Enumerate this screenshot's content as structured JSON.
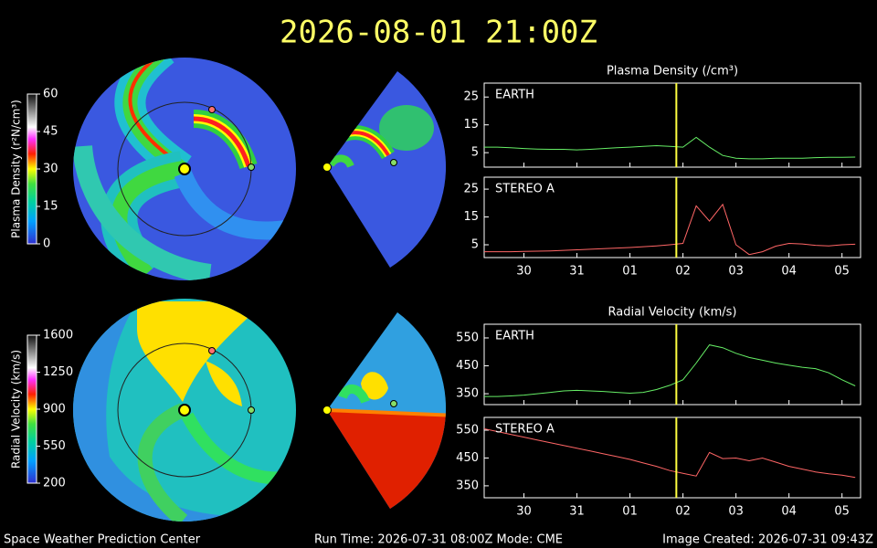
{
  "title": "2026-08-01 21:00Z",
  "colorbars": [
    {
      "label": "Plasma Density (r²N/cm³)",
      "lim": [
        0,
        60
      ],
      "ticks": [
        0,
        15,
        30,
        45,
        60
      ]
    },
    {
      "label": "Radial Velocity (km/s)",
      "lim": [
        200,
        1600
      ],
      "ticks": [
        200,
        550,
        900,
        1250,
        1600
      ]
    }
  ],
  "chart_data": [
    {
      "type": "line",
      "title": "Plasma Density (/cm³)",
      "x": [
        -0.75,
        -0.5,
        -0.25,
        0,
        0.25,
        0.5,
        0.75,
        1,
        1.25,
        1.5,
        1.75,
        2,
        2.25,
        2.5,
        2.75,
        3,
        3.25,
        3.5,
        3.75,
        4,
        4.25,
        4.5,
        4.75,
        5,
        5.25,
        5.5,
        5.75,
        6,
        6.25
      ],
      "xlim": [
        -0.75,
        6.35
      ],
      "ylim": [
        -0.2,
        30
      ],
      "yticks": [
        5,
        15,
        25
      ],
      "now": 2.875,
      "series": [
        {
          "name": "EARTH",
          "color": "#66ee66",
          "values": [
            7,
            7,
            6.8,
            6.5,
            6.3,
            6.2,
            6.2,
            6,
            6.2,
            6.5,
            6.8,
            7,
            7.3,
            7.5,
            7.3,
            7,
            10.5,
            7,
            4,
            3,
            2.8,
            2.8,
            3,
            3,
            3,
            3.2,
            3.3,
            3.3,
            3.4
          ]
        }
      ]
    },
    {
      "type": "line",
      "x": [
        -0.75,
        -0.5,
        -0.25,
        0,
        0.25,
        0.5,
        0.75,
        1,
        1.25,
        1.5,
        1.75,
        2,
        2.25,
        2.5,
        2.75,
        3,
        3.25,
        3.5,
        3.75,
        4,
        4.25,
        4.5,
        4.75,
        5,
        5.25,
        5.5,
        5.75,
        6,
        6.25
      ],
      "xlim": [
        -0.75,
        6.35
      ],
      "ylim": [
        0.4,
        29.3
      ],
      "yticks": [
        5,
        15,
        25
      ],
      "now": 2.875,
      "xticks": [
        {
          "value": 0,
          "label": "30"
        },
        {
          "value": 1,
          "label": "31"
        },
        {
          "value": 2,
          "label": "01"
        },
        {
          "value": 3,
          "label": "02"
        },
        {
          "value": 4,
          "label": "03"
        },
        {
          "value": 5,
          "label": "04"
        },
        {
          "value": 6,
          "label": "05"
        }
      ],
      "series": [
        {
          "name": "STEREO A",
          "color": "#ff6666",
          "values": [
            2.5,
            2.5,
            2.5,
            2.6,
            2.7,
            2.8,
            3,
            3.2,
            3.4,
            3.6,
            3.8,
            4,
            4.3,
            4.6,
            5,
            5.5,
            19,
            13.5,
            19.5,
            5,
            1.5,
            2.5,
            4.5,
            5.5,
            5.3,
            4.8,
            4.6,
            5,
            5.2
          ]
        }
      ]
    },
    {
      "type": "line",
      "title": "Radial Velocity (km/s)",
      "x": [
        -0.75,
        -0.5,
        -0.25,
        0,
        0.25,
        0.5,
        0.75,
        1,
        1.25,
        1.5,
        1.75,
        2,
        2.25,
        2.5,
        2.75,
        3,
        3.25,
        3.5,
        3.75,
        4,
        4.25,
        4.5,
        4.75,
        5,
        5.25,
        5.5,
        5.75,
        6,
        6.25
      ],
      "xlim": [
        -0.75,
        6.35
      ],
      "ylim": [
        311,
        599
      ],
      "yticks": [
        350,
        450,
        550
      ],
      "now": 2.875,
      "series": [
        {
          "name": "EARTH",
          "color": "#66ee66",
          "values": [
            340,
            340,
            342,
            345,
            350,
            355,
            360,
            362,
            360,
            358,
            355,
            352,
            355,
            365,
            380,
            400,
            460,
            525,
            515,
            495,
            480,
            470,
            460,
            452,
            445,
            440,
            425,
            400,
            378
          ]
        }
      ]
    },
    {
      "type": "line",
      "x": [
        -0.75,
        -0.5,
        -0.25,
        0,
        0.25,
        0.5,
        0.75,
        1,
        1.25,
        1.5,
        1.75,
        2,
        2.25,
        2.5,
        2.75,
        3,
        3.25,
        3.5,
        3.75,
        4,
        4.25,
        4.5,
        4.75,
        5,
        5.25,
        5.5,
        5.75,
        6,
        6.25
      ],
      "xlim": [
        -0.75,
        6.35
      ],
      "ylim": [
        307,
        596
      ],
      "yticks": [
        350,
        450,
        550
      ],
      "now": 2.875,
      "xticks": [
        {
          "value": 0,
          "label": "30"
        },
        {
          "value": 1,
          "label": "31"
        },
        {
          "value": 2,
          "label": "01"
        },
        {
          "value": 3,
          "label": "02"
        },
        {
          "value": 4,
          "label": "03"
        },
        {
          "value": 5,
          "label": "04"
        },
        {
          "value": 6,
          "label": "05"
        }
      ],
      "series": [
        {
          "name": "STEREO A",
          "color": "#ff6666",
          "values": [
            555,
            545,
            535,
            525,
            515,
            505,
            495,
            485,
            475,
            465,
            455,
            445,
            432,
            420,
            405,
            395,
            385,
            470,
            448,
            450,
            440,
            450,
            435,
            420,
            410,
            400,
            393,
            388,
            380
          ]
        }
      ]
    }
  ],
  "footer": {
    "left": "Space Weather Prediction Center",
    "center": "Run Time: 2026-07-31 08:00Z  Mode: CME",
    "right": "Image Created: 2026-07-31 09:43Z"
  }
}
